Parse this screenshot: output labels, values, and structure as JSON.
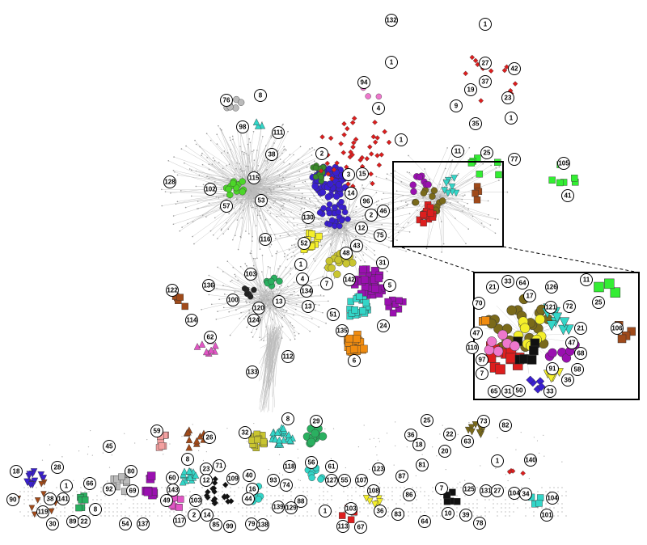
{
  "labels": [
    "132",
    "1",
    "1",
    "27",
    "42",
    "94",
    "37",
    "23",
    "19",
    "76",
    "8",
    "4",
    "9",
    "1",
    "98",
    "111",
    "35",
    "1",
    "38",
    "2",
    "11",
    "25",
    "77",
    "105",
    "128",
    "102",
    "115",
    "3",
    "15",
    "53",
    "57",
    "14",
    "96",
    "41",
    "130",
    "2",
    "46",
    "12",
    "116",
    "75",
    "52",
    "43",
    "48",
    "31",
    "1",
    "103",
    "4",
    "7",
    "142",
    "5",
    "136",
    "122",
    "134",
    "100",
    "13",
    "120",
    "13",
    "51",
    "114",
    "124",
    "24",
    "135",
    "62",
    "6",
    "112",
    "133",
    "32",
    "8",
    "29",
    "25",
    "73",
    "82",
    "59",
    "26",
    "36",
    "22",
    "18",
    "20",
    "63",
    "45",
    "8",
    "1",
    "140",
    "56",
    "61",
    "18",
    "28",
    "80",
    "118",
    "123",
    "81",
    "23",
    "71",
    "1",
    "66",
    "12",
    "109",
    "40",
    "93",
    "127",
    "55",
    "107",
    "87",
    "92",
    "69",
    "60",
    "143",
    "16",
    "74",
    "108",
    "86",
    "7",
    "125",
    "131",
    "27",
    "104",
    "34",
    "104",
    "90",
    "38",
    "141",
    "49",
    "103",
    "44",
    "139",
    "88",
    "129",
    "8",
    "119",
    "89",
    "22",
    "30",
    "54",
    "137",
    "117",
    "2",
    "14",
    "85",
    "99",
    "79",
    "138",
    "1",
    "36",
    "83",
    "64",
    "10",
    "39",
    "78",
    "113",
    "67",
    "101",
    "103"
  ],
  "inset_labels": [
    "21",
    "33",
    "64",
    "126",
    "11",
    "70",
    "17",
    "121",
    "72",
    "25",
    "21",
    "47",
    "106",
    "110",
    "47",
    "97",
    "68",
    "58",
    "91",
    "7",
    "36",
    "65",
    "31",
    "50",
    "33"
  ]
}
